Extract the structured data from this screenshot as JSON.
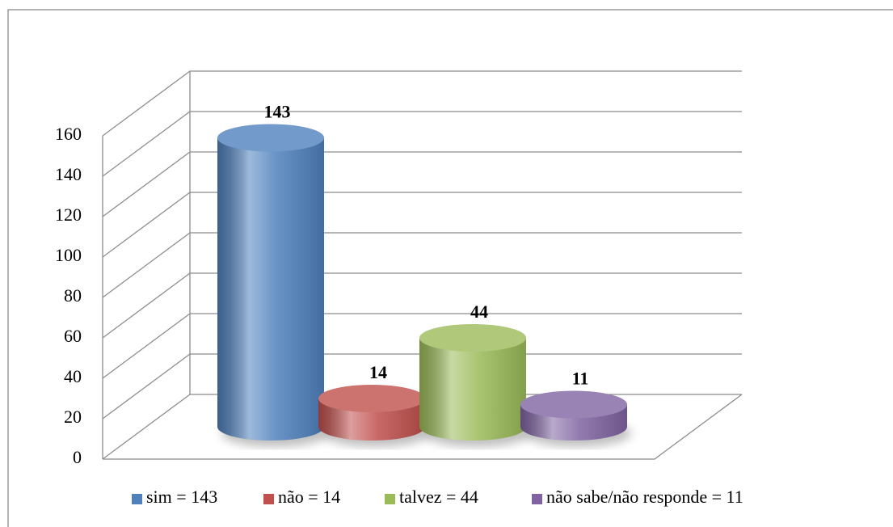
{
  "chart_data": {
    "type": "bar3d",
    "categories": [
      "sim = 143",
      "não = 14",
      "talvez = 44",
      "não sabe/não responde = 11"
    ],
    "values": [
      143,
      14,
      44,
      11
    ],
    "colors": [
      "#4f81bd",
      "#c0504d",
      "#9bbb59",
      "#8064a2"
    ],
    "ylim": [
      0,
      160
    ],
    "yticks": [
      0,
      20,
      40,
      60,
      80,
      100,
      120,
      140,
      160
    ],
    "grid": true,
    "legend": "bottom"
  }
}
